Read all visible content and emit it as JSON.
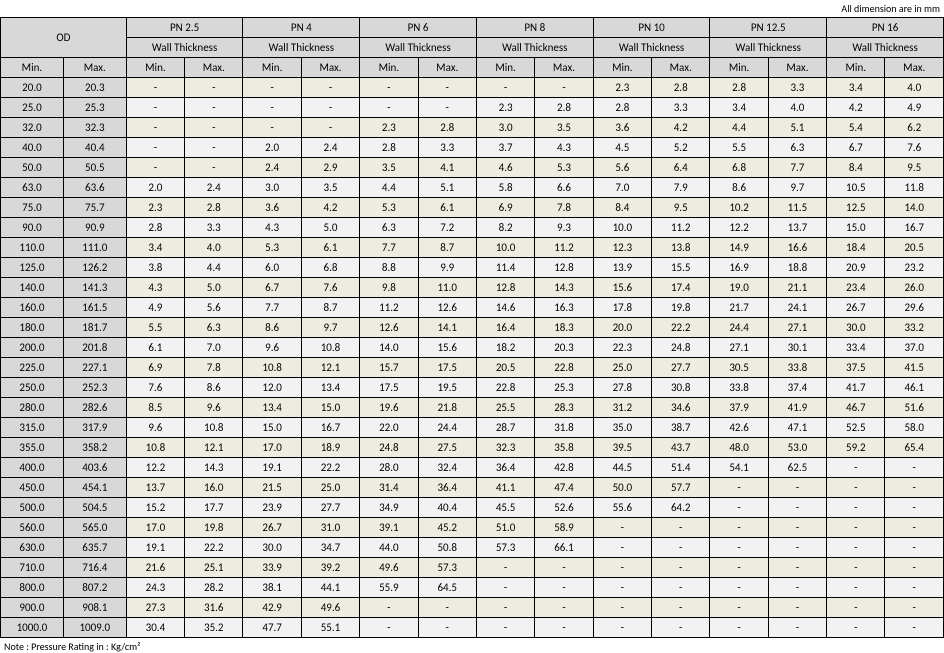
{
  "caption": "All dimension are in mm",
  "footnote": "Note : Pressure Rating in : Kg/cm²",
  "corner": "OD",
  "subhead": "Wall Thickness",
  "minmax": [
    "Min.",
    "Max."
  ],
  "pn_groups": [
    "PN 2.5",
    "PN 4",
    "PN 6",
    "PN 8",
    "PN 10",
    "PN 12.5",
    "PN 16"
  ],
  "rows": [
    {
      "od": [
        "20.0",
        "20.3"
      ],
      "c": [
        [
          "-",
          "-"
        ],
        [
          "-",
          "-"
        ],
        [
          "-",
          "-"
        ],
        [
          "-",
          "-"
        ],
        [
          "2.3",
          "2.8"
        ],
        [
          "2.8",
          "3.3"
        ],
        [
          "3.4",
          "4.0"
        ]
      ]
    },
    {
      "od": [
        "25.0",
        "25.3"
      ],
      "c": [
        [
          "-",
          "-"
        ],
        [
          "-",
          "-"
        ],
        [
          "-",
          "-"
        ],
        [
          "2.3",
          "2.8"
        ],
        [
          "2.8",
          "3.3"
        ],
        [
          "3.4",
          "4.0"
        ],
        [
          "4.2",
          "4.9"
        ]
      ]
    },
    {
      "od": [
        "32.0",
        "32.3"
      ],
      "c": [
        [
          "-",
          "-"
        ],
        [
          "-",
          "-"
        ],
        [
          "2.3",
          "2.8"
        ],
        [
          "3.0",
          "3.5"
        ],
        [
          "3.6",
          "4.2"
        ],
        [
          "4.4",
          "5.1"
        ],
        [
          "5.4",
          "6.2"
        ]
      ]
    },
    {
      "od": [
        "40.0",
        "40.4"
      ],
      "c": [
        [
          "-",
          "-"
        ],
        [
          "2.0",
          "2.4"
        ],
        [
          "2.8",
          "3.3"
        ],
        [
          "3.7",
          "4.3"
        ],
        [
          "4.5",
          "5.2"
        ],
        [
          "5.5",
          "6.3"
        ],
        [
          "6.7",
          "7.6"
        ]
      ]
    },
    {
      "od": [
        "50.0",
        "50.5"
      ],
      "c": [
        [
          "-",
          "-"
        ],
        [
          "2.4",
          "2.9"
        ],
        [
          "3.5",
          "4.1"
        ],
        [
          "4.6",
          "5.3"
        ],
        [
          "5.6",
          "6.4"
        ],
        [
          "6.8",
          "7.7"
        ],
        [
          "8.4",
          "9.5"
        ]
      ]
    },
    {
      "od": [
        "63.0",
        "63.6"
      ],
      "c": [
        [
          "2.0",
          "2.4"
        ],
        [
          "3.0",
          "3.5"
        ],
        [
          "4.4",
          "5.1"
        ],
        [
          "5.8",
          "6.6"
        ],
        [
          "7.0",
          "7.9"
        ],
        [
          "8.6",
          "9.7"
        ],
        [
          "10.5",
          "11.8"
        ]
      ]
    },
    {
      "od": [
        "75.0",
        "75.7"
      ],
      "c": [
        [
          "2.3",
          "2.8"
        ],
        [
          "3.6",
          "4.2"
        ],
        [
          "5.3",
          "6.1"
        ],
        [
          "6.9",
          "7.8"
        ],
        [
          "8.4",
          "9.5"
        ],
        [
          "10.2",
          "11.5"
        ],
        [
          "12.5",
          "14.0"
        ]
      ]
    },
    {
      "od": [
        "90.0",
        "90.9"
      ],
      "c": [
        [
          "2.8",
          "3.3"
        ],
        [
          "4.3",
          "5.0"
        ],
        [
          "6.3",
          "7.2"
        ],
        [
          "8.2",
          "9.3"
        ],
        [
          "10.0",
          "11.2"
        ],
        [
          "12.2",
          "13.7"
        ],
        [
          "15.0",
          "16.7"
        ]
      ]
    },
    {
      "od": [
        "110.0",
        "111.0"
      ],
      "c": [
        [
          "3.4",
          "4.0"
        ],
        [
          "5.3",
          "6.1"
        ],
        [
          "7.7",
          "8.7"
        ],
        [
          "10.0",
          "11.2"
        ],
        [
          "12.3",
          "13.8"
        ],
        [
          "14.9",
          "16.6"
        ],
        [
          "18.4",
          "20.5"
        ]
      ]
    },
    {
      "od": [
        "125.0",
        "126.2"
      ],
      "c": [
        [
          "3.8",
          "4.4"
        ],
        [
          "6.0",
          "6.8"
        ],
        [
          "8.8",
          "9.9"
        ],
        [
          "11.4",
          "12.8"
        ],
        [
          "13.9",
          "15.5"
        ],
        [
          "16.9",
          "18.8"
        ],
        [
          "20.9",
          "23.2"
        ]
      ]
    },
    {
      "od": [
        "140.0",
        "141.3"
      ],
      "c": [
        [
          "4.3",
          "5.0"
        ],
        [
          "6.7",
          "7.6"
        ],
        [
          "9.8",
          "11.0"
        ],
        [
          "12.8",
          "14.3"
        ],
        [
          "15.6",
          "17.4"
        ],
        [
          "19.0",
          "21.1"
        ],
        [
          "23.4",
          "26.0"
        ]
      ]
    },
    {
      "od": [
        "160.0",
        "161.5"
      ],
      "c": [
        [
          "4.9",
          "5.6"
        ],
        [
          "7.7",
          "8.7"
        ],
        [
          "11.2",
          "12.6"
        ],
        [
          "14.6",
          "16.3"
        ],
        [
          "17.8",
          "19.8"
        ],
        [
          "21.7",
          "24.1"
        ],
        [
          "26.7",
          "29.6"
        ]
      ]
    },
    {
      "od": [
        "180.0",
        "181.7"
      ],
      "c": [
        [
          "5.5",
          "6.3"
        ],
        [
          "8.6",
          "9.7"
        ],
        [
          "12.6",
          "14.1"
        ],
        [
          "16.4",
          "18.3"
        ],
        [
          "20.0",
          "22.2"
        ],
        [
          "24.4",
          "27.1"
        ],
        [
          "30.0",
          "33.2"
        ]
      ]
    },
    {
      "od": [
        "200.0",
        "201.8"
      ],
      "c": [
        [
          "6.1",
          "7.0"
        ],
        [
          "9.6",
          "10.8"
        ],
        [
          "14.0",
          "15.6"
        ],
        [
          "18.2",
          "20.3"
        ],
        [
          "22.3",
          "24.8"
        ],
        [
          "27.1",
          "30.1"
        ],
        [
          "33.4",
          "37.0"
        ]
      ]
    },
    {
      "od": [
        "225.0",
        "227.1"
      ],
      "c": [
        [
          "6.9",
          "7.8"
        ],
        [
          "10.8",
          "12.1"
        ],
        [
          "15.7",
          "17.5"
        ],
        [
          "20.5",
          "22.8"
        ],
        [
          "25.0",
          "27.7"
        ],
        [
          "30.5",
          "33.8"
        ],
        [
          "37.5",
          "41.5"
        ]
      ]
    },
    {
      "od": [
        "250.0",
        "252.3"
      ],
      "c": [
        [
          "7.6",
          "8.6"
        ],
        [
          "12.0",
          "13.4"
        ],
        [
          "17.5",
          "19.5"
        ],
        [
          "22.8",
          "25.3"
        ],
        [
          "27.8",
          "30.8"
        ],
        [
          "33.8",
          "37.4"
        ],
        [
          "41.7",
          "46.1"
        ]
      ]
    },
    {
      "od": [
        "280.0",
        "282.6"
      ],
      "c": [
        [
          "8.5",
          "9.6"
        ],
        [
          "13.4",
          "15.0"
        ],
        [
          "19.6",
          "21.8"
        ],
        [
          "25.5",
          "28.3"
        ],
        [
          "31.2",
          "34.6"
        ],
        [
          "37.9",
          "41.9"
        ],
        [
          "46.7",
          "51.6"
        ]
      ]
    },
    {
      "od": [
        "315.0",
        "317.9"
      ],
      "c": [
        [
          "9.6",
          "10.8"
        ],
        [
          "15.0",
          "16.7"
        ],
        [
          "22.0",
          "24.4"
        ],
        [
          "28.7",
          "31.8"
        ],
        [
          "35.0",
          "38.7"
        ],
        [
          "42.6",
          "47.1"
        ],
        [
          "52.5",
          "58.0"
        ]
      ]
    },
    {
      "od": [
        "355.0",
        "358.2"
      ],
      "c": [
        [
          "10.8",
          "12.1"
        ],
        [
          "17.0",
          "18.9"
        ],
        [
          "24.8",
          "27.5"
        ],
        [
          "32.3",
          "35.8"
        ],
        [
          "39.5",
          "43.7"
        ],
        [
          "48.0",
          "53.0"
        ],
        [
          "59.2",
          "65.4"
        ]
      ]
    },
    {
      "od": [
        "400.0",
        "403.6"
      ],
      "c": [
        [
          "12.2",
          "14.3"
        ],
        [
          "19.1",
          "22.2"
        ],
        [
          "28.0",
          "32.4"
        ],
        [
          "36.4",
          "42.8"
        ],
        [
          "44.5",
          "51.4"
        ],
        [
          "54.1",
          "62.5"
        ],
        [
          "-",
          "-"
        ]
      ]
    },
    {
      "od": [
        "450.0",
        "454.1"
      ],
      "c": [
        [
          "13.7",
          "16.0"
        ],
        [
          "21.5",
          "25.0"
        ],
        [
          "31.4",
          "36.4"
        ],
        [
          "41.1",
          "47.4"
        ],
        [
          "50.0",
          "57.7"
        ],
        [
          "-",
          "-"
        ],
        [
          "-",
          "-"
        ]
      ]
    },
    {
      "od": [
        "500.0",
        "504.5"
      ],
      "c": [
        [
          "15.2",
          "17.7"
        ],
        [
          "23.9",
          "27.7"
        ],
        [
          "34.9",
          "40.4"
        ],
        [
          "45.5",
          "52.6"
        ],
        [
          "55.6",
          "64.2"
        ],
        [
          "-",
          "-"
        ],
        [
          "-",
          "-"
        ]
      ]
    },
    {
      "od": [
        "560.0",
        "565.0"
      ],
      "c": [
        [
          "17.0",
          "19.8"
        ],
        [
          "26.7",
          "31.0"
        ],
        [
          "39.1",
          "45.2"
        ],
        [
          "51.0",
          "58.9"
        ],
        [
          "-",
          "-"
        ],
        [
          "-",
          "-"
        ],
        [
          "-",
          "-"
        ]
      ]
    },
    {
      "od": [
        "630.0",
        "635.7"
      ],
      "c": [
        [
          "19.1",
          "22.2"
        ],
        [
          "30.0",
          "34.7"
        ],
        [
          "44.0",
          "50.8"
        ],
        [
          "57.3",
          "66.1"
        ],
        [
          "-",
          "-"
        ],
        [
          "-",
          "-"
        ],
        [
          "-",
          "-"
        ]
      ]
    },
    {
      "od": [
        "710.0",
        "716.4"
      ],
      "c": [
        [
          "21.6",
          "25.1"
        ],
        [
          "33.9",
          "39.2"
        ],
        [
          "49.6",
          "57.3"
        ],
        [
          "-",
          "-"
        ],
        [
          "-",
          "-"
        ],
        [
          "-",
          "-"
        ],
        [
          "-",
          "-"
        ]
      ]
    },
    {
      "od": [
        "800.0",
        "807.2"
      ],
      "c": [
        [
          "24.3",
          "28.2"
        ],
        [
          "38.1",
          "44.1"
        ],
        [
          "55.9",
          "64.5"
        ],
        [
          "-",
          "-"
        ],
        [
          "-",
          "-"
        ],
        [
          "-",
          "-"
        ],
        [
          "-",
          "-"
        ]
      ]
    },
    {
      "od": [
        "900.0",
        "908.1"
      ],
      "c": [
        [
          "27.3",
          "31.6"
        ],
        [
          "42.9",
          "49.6"
        ],
        [
          "-",
          "-"
        ],
        [
          "-",
          "-"
        ],
        [
          "-",
          "-"
        ],
        [
          "-",
          "-"
        ],
        [
          "-",
          "-"
        ]
      ]
    },
    {
      "od": [
        "1000.0",
        "1009.0"
      ],
      "c": [
        [
          "30.4",
          "35.2"
        ],
        [
          "47.7",
          "55.1"
        ],
        [
          "-",
          "-"
        ],
        [
          "-",
          "-"
        ],
        [
          "-",
          "-"
        ],
        [
          "-",
          "-"
        ],
        [
          "-",
          "-"
        ]
      ]
    }
  ]
}
